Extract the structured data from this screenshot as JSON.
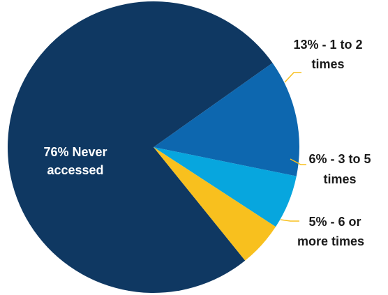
{
  "chart_data": {
    "type": "pie",
    "title": "",
    "slices": [
      {
        "category": "Never accessed",
        "value": 76,
        "label_lines": [
          "76% Never",
          "accessed"
        ],
        "color": "#0f3862",
        "label_color": "#ffffff"
      },
      {
        "category": "1 to 2 times",
        "value": 13,
        "label_lines": [
          "13% - 1 to 2",
          "times"
        ],
        "color": "#0d67af",
        "label_color": "#1a1a1a"
      },
      {
        "category": "3 to 5 times",
        "value": 6,
        "label_lines": [
          "6% - 3 to 5",
          "times"
        ],
        "color": "#07a6de",
        "label_color": "#1a1a1a"
      },
      {
        "category": "6 or more times",
        "value": 5,
        "label_lines": [
          "5% - 6 or",
          "more times"
        ],
        "color": "#f8c01e",
        "label_color": "#1a1a1a"
      }
    ],
    "legend": "none",
    "leader_line_color": "#f8c01e"
  }
}
